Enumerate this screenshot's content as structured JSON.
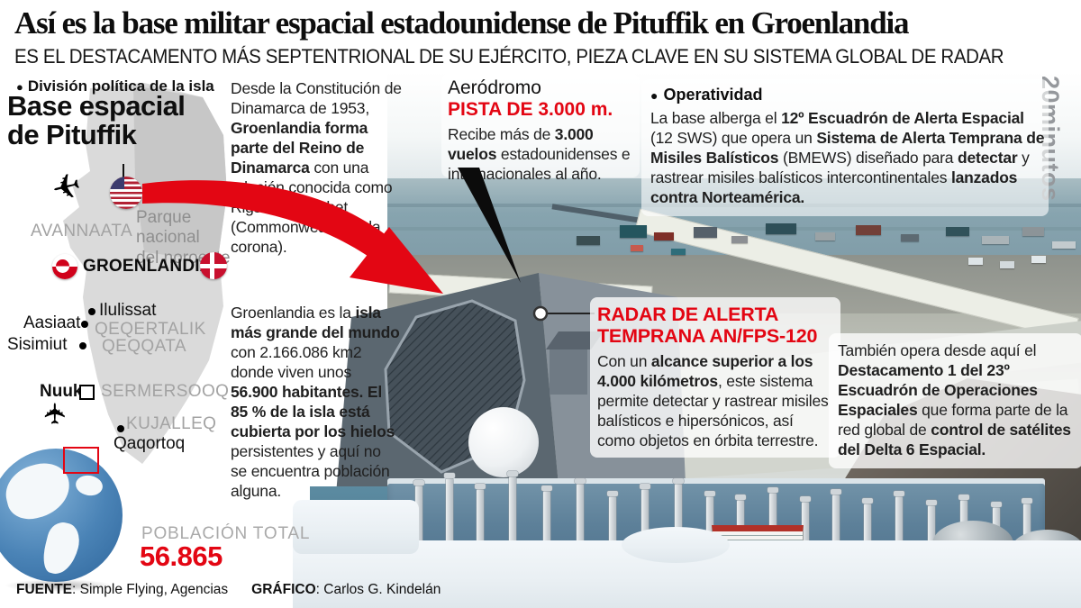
{
  "header": {
    "title": "Así es la base militar espacial estadounidense de Pituffik en Groenlandia",
    "subtitle": "ES EL DESTACAMENTO MÁS SEPTENTRIONAL DE SU EJÉRCITO, PIEZA CLAVE EN SU SISTEMA GLOBAL DE RADAR"
  },
  "brand": {
    "name": "20minutos"
  },
  "map": {
    "kicker": "División política de la isla",
    "title": "Base espacial\nde Pituffik",
    "park": "Parque\nnacional\ndel noroeste",
    "country": "GROENLANDIA",
    "regions": [
      "AVANNAATA",
      "QEQERTALIK",
      "QEQQATA",
      "SERMERSOOQ",
      "KUJALLEQ"
    ],
    "cities": [
      "Ilulissat",
      "Aasiaat",
      "Sisimiut",
      "Nuuk",
      "Qaqortoq"
    ],
    "population_label": "POBLACIÓN TOTAL",
    "population_value": "56.865"
  },
  "paragraphs": {
    "denmark": [
      {
        "t": "Desde la Constitución de Dinamarca de 1953, "
      },
      {
        "t": "Groenlandia forma parte del Reino de Dinamarca",
        "b": true
      },
      {
        "t": " con una relación conocida como Rigsfællesskabet (Commonwealth de la corona)."
      }
    ],
    "island": [
      {
        "t": "Groenlandia es la "
      },
      {
        "t": "isla más grande del mundo",
        "b": true
      },
      {
        "t": " con 2.166.086 km2 donde viven unos "
      },
      {
        "t": "56.900 habitantes.",
        "b": true
      },
      {
        "t": " "
      },
      {
        "t": "El 85 % de la isla está cubierta por los hielos",
        "b": true
      },
      {
        "t": " persistentes y aquí no se encuentra población alguna."
      }
    ]
  },
  "aerodrome": {
    "title": "Aeródromo",
    "highlight": "PISTA DE 3.000 m.",
    "body": [
      {
        "t": "Recibe más de "
      },
      {
        "t": "3.000 vuelos",
        "b": true
      },
      {
        "t": " estadounidenses e internacionales al año."
      }
    ]
  },
  "operations": {
    "title": "Operatividad",
    "body": [
      {
        "t": "La base alberga el "
      },
      {
        "t": "12º Escuadrón de Alerta Espacial",
        "b": true
      },
      {
        "t": " (12 SWS) que opera un "
      },
      {
        "t": "Sistema de Alerta Temprana de Misiles Balísticos",
        "b": true
      },
      {
        "t": " (BMEWS) diseñado para "
      },
      {
        "t": "detectar",
        "b": true
      },
      {
        "t": " y rastrear misiles balísticos intercontinentales "
      },
      {
        "t": "lanzados contra Norteamérica.",
        "b": true
      }
    ]
  },
  "radar": {
    "title": "RADAR DE ALERTA\nTEMPRANA AN/FPS-120",
    "body": [
      {
        "t": "Con un "
      },
      {
        "t": "alcance superior a los 4.000 kilómetros",
        "b": true
      },
      {
        "t": ", este sistema permite detectar y rastrear misiles balísticos e hipersónicos, así como objetos en órbita terrestre."
      }
    ]
  },
  "delta": {
    "body": [
      {
        "t": "También opera desde aquí el "
      },
      {
        "t": "Destacamento 1 del 23º Escuadrón de Operaciones Espaciales",
        "b": true
      },
      {
        "t": " que forma parte de la red global de "
      },
      {
        "t": "control de satélites del Delta 6 Espacial.",
        "b": true
      }
    ]
  },
  "footer": {
    "source_label": "FUENTE",
    "source": ": Simple Flying, Agencias",
    "credit_label": "GRÁFICO",
    "credit": ": Carlos G. Kindelán"
  },
  "icons": {
    "bullet": "●",
    "plane": "✈",
    "city_dot": "●"
  },
  "colors": {
    "accent_red": "#e30613",
    "label_gray": "#a3a3a3",
    "map_gray": "#dadada",
    "park_gray": "#c7c7c7",
    "sea_blue": "#87a4b0",
    "building_blue": "#5d8099",
    "brand_gray": "#95989c"
  }
}
